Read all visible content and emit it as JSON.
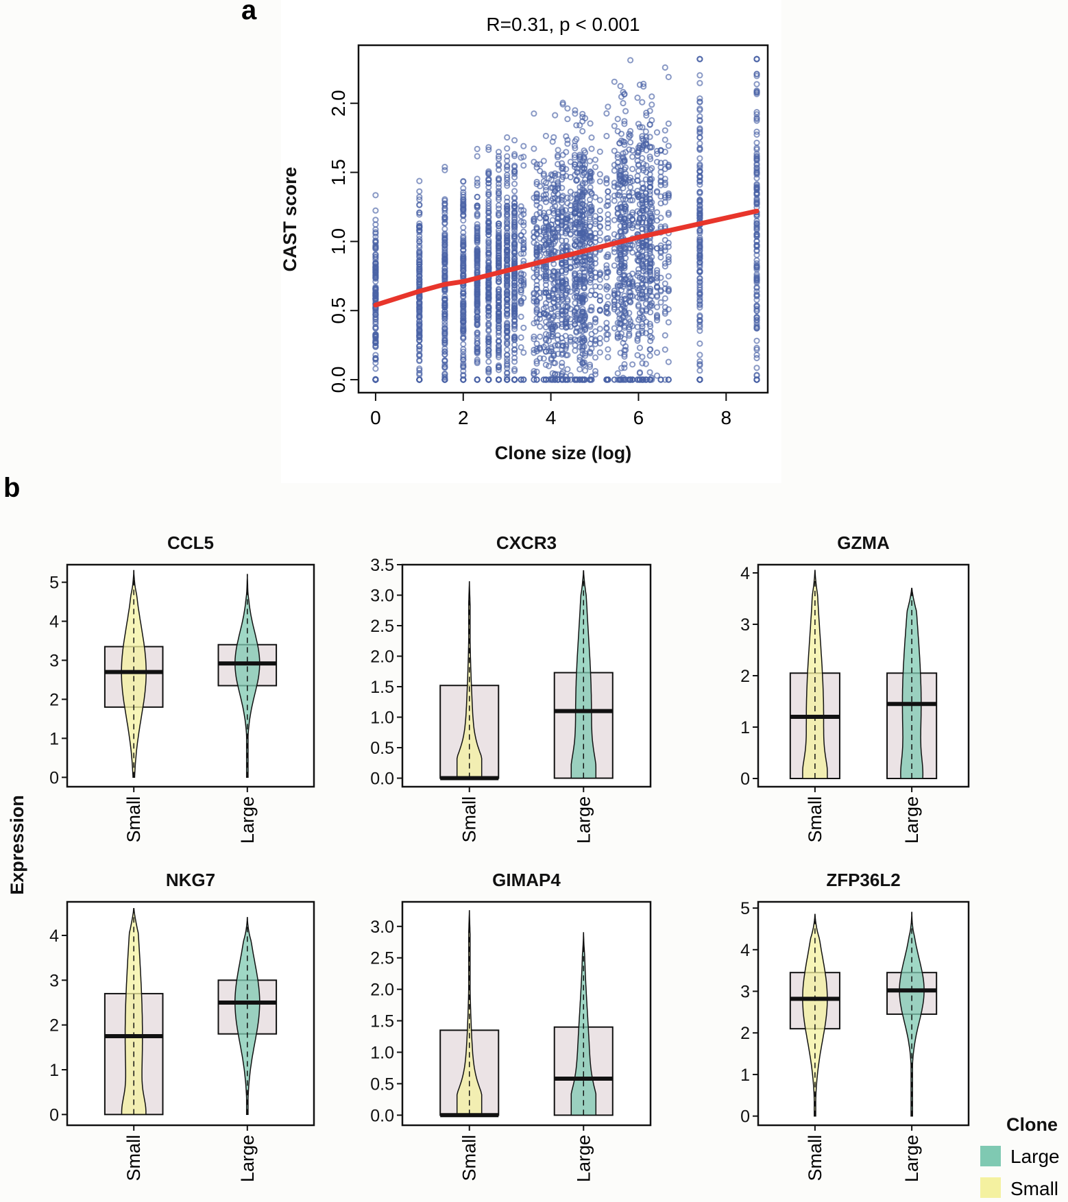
{
  "panel_labels": {
    "a": "a",
    "b": "b"
  },
  "colors": {
    "points": "#4a63a6",
    "fit_line": "#e8352b",
    "small": "#f4f1a0",
    "large": "#7fc9b2",
    "box": "#ebe3e5"
  },
  "chart_data": [
    {
      "type": "scatter",
      "title": "R=0.31, p < 0.001",
      "xlabel": "Clone size (log)",
      "ylabel": "CAST score",
      "xlim": [
        -0.39,
        8.95
      ],
      "ylim": [
        -0.094,
        2.42
      ],
      "xticks": [
        "0",
        "2",
        "4",
        "6",
        "8"
      ],
      "yticks": [
        "0.0",
        "0.5",
        "1.0",
        "1.5",
        "2.0"
      ],
      "xtick_values": [
        0,
        2,
        4,
        6,
        8
      ],
      "ytick_values": [
        0,
        0.5,
        1.0,
        1.5,
        2.0
      ],
      "fit_line": {
        "x": [
          0,
          1,
          1.58,
          2,
          3,
          4,
          5,
          6,
          7,
          8.7
        ],
        "y": [
          0.54,
          0.64,
          0.69,
          0.71,
          0.79,
          0.87,
          0.95,
          1.03,
          1.1,
          1.22
        ]
      },
      "point_columns_x": [
        0,
        1,
        1.58,
        2,
        2.32,
        2.58,
        2.81,
        3,
        3.17,
        7.4,
        8.7
      ],
      "dense_x_range": [
        3.3,
        6.7
      ],
      "y_range": [
        0,
        2.32
      ]
    },
    {
      "type": "violin_box",
      "ylabel": "Expression",
      "categories": [
        "Small",
        "Large"
      ],
      "legend": {
        "title": "Clone",
        "entries": [
          "Large",
          "Small"
        ],
        "placement": "bottom-right"
      },
      "panels": [
        {
          "title": "CCL5",
          "ylim": [
            -0.24,
            5.45
          ],
          "yticks": [
            "0",
            "1",
            "2",
            "3",
            "4",
            "5"
          ],
          "ytick_values": [
            0,
            1,
            2,
            3,
            4,
            5
          ],
          "groups": [
            {
              "name": "Small",
              "min": 0,
              "q1": 1.8,
              "median": 2.7,
              "q3": 3.35,
              "max": 5.3,
              "zero_mass": 0
            },
            {
              "name": "Large",
              "min": 0,
              "q1": 2.35,
              "median": 2.92,
              "q3": 3.4,
              "max": 5.2,
              "zero_mass": 0
            }
          ]
        },
        {
          "title": "CXCR3",
          "ylim": [
            -0.14,
            3.5
          ],
          "yticks": [
            "0.0",
            "0.5",
            "1.0",
            "1.5",
            "2.0",
            "2.5",
            "3.0",
            "3.5"
          ],
          "ytick_values": [
            0,
            0.5,
            1,
            1.5,
            2,
            2.5,
            3,
            3.5
          ],
          "groups": [
            {
              "name": "Small",
              "min": 0,
              "q1": 0,
              "median": 0,
              "q3": 1.52,
              "max": 3.22,
              "zero_mass": 1
            },
            {
              "name": "Large",
              "min": 0,
              "q1": 0,
              "median": 1.1,
              "q3": 1.73,
              "max": 3.4,
              "zero_mass": 0.6
            }
          ]
        },
        {
          "title": "GZMA",
          "ylim": [
            -0.16,
            4.16
          ],
          "yticks": [
            "0",
            "1",
            "2",
            "3",
            "4"
          ],
          "ytick_values": [
            0,
            1,
            2,
            3,
            4
          ],
          "groups": [
            {
              "name": "Small",
              "min": 0,
              "q1": 0,
              "median": 1.2,
              "q3": 2.05,
              "max": 4.05,
              "zero_mass": 0.5
            },
            {
              "name": "Large",
              "min": 0,
              "q1": 0,
              "median": 1.45,
              "q3": 2.05,
              "max": 3.7,
              "zero_mass": 0.4
            }
          ]
        },
        {
          "title": "NKG7",
          "ylim": [
            -0.24,
            4.75
          ],
          "yticks": [
            "0",
            "1",
            "2",
            "3",
            "4"
          ],
          "ytick_values": [
            0,
            1,
            2,
            3,
            4
          ],
          "groups": [
            {
              "name": "Small",
              "min": 0,
              "q1": 0,
              "median": 1.75,
              "q3": 2.7,
              "max": 4.6,
              "zero_mass": 0.5
            },
            {
              "name": "Large",
              "min": 0,
              "q1": 1.8,
              "median": 2.5,
              "q3": 3.0,
              "max": 4.4,
              "zero_mass": 0
            }
          ]
        },
        {
          "title": "GIMAP4",
          "ylim": [
            -0.16,
            3.39
          ],
          "yticks": [
            "0.0",
            "0.5",
            "1.0",
            "1.5",
            "2.0",
            "2.5",
            "3.0"
          ],
          "ytick_values": [
            0,
            0.5,
            1,
            1.5,
            2,
            2.5,
            3
          ],
          "groups": [
            {
              "name": "Small",
              "min": 0,
              "q1": 0,
              "median": 0,
              "q3": 1.35,
              "max": 3.25,
              "zero_mass": 1
            },
            {
              "name": "Large",
              "min": 0,
              "q1": 0,
              "median": 0.58,
              "q3": 1.4,
              "max": 2.9,
              "zero_mass": 0.8
            }
          ]
        },
        {
          "title": "ZFP36L2",
          "ylim": [
            -0.22,
            5.15
          ],
          "yticks": [
            "0",
            "1",
            "2",
            "3",
            "4",
            "5"
          ],
          "ytick_values": [
            0,
            1,
            2,
            3,
            4,
            5
          ],
          "groups": [
            {
              "name": "Small",
              "min": 0,
              "q1": 2.1,
              "median": 2.82,
              "q3": 3.45,
              "max": 4.85,
              "zero_mass": 0
            },
            {
              "name": "Large",
              "min": 0,
              "q1": 2.45,
              "median": 3.02,
              "q3": 3.45,
              "max": 4.9,
              "zero_mass": 0
            }
          ]
        }
      ]
    }
  ]
}
